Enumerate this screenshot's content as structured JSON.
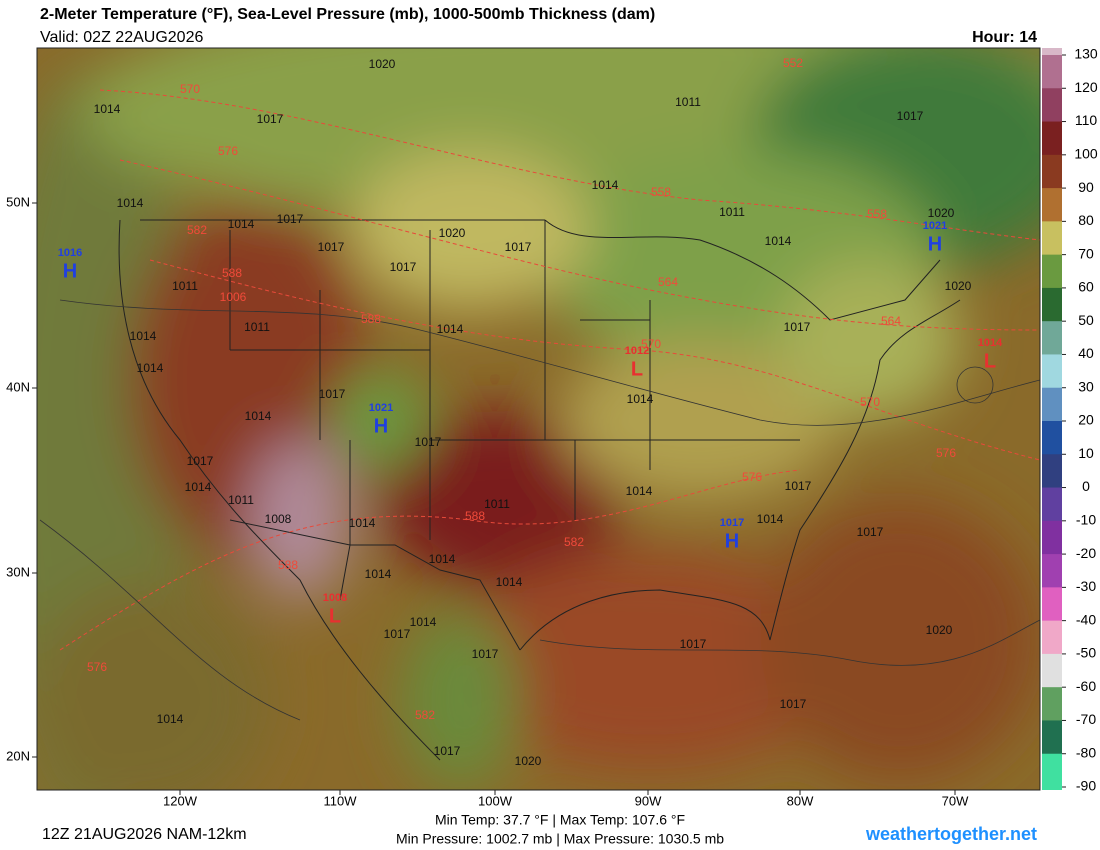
{
  "header": {
    "title": "2-Meter Temperature (°F), Sea-Level Pressure (mb), 1000-500mb Thickness (dam)",
    "valid": "Valid: 02Z 22AUG2026",
    "hour": "Hour: 14"
  },
  "colorbar": {
    "ticks": [
      130,
      120,
      110,
      100,
      90,
      80,
      70,
      60,
      50,
      40,
      30,
      20,
      10,
      0,
      -10,
      -20,
      -30,
      -40,
      -50,
      -60,
      -70,
      -80,
      -90
    ]
  },
  "axes": {
    "lat": [
      "50N",
      "40N",
      "30N",
      "20N"
    ],
    "lon": [
      "120W",
      "110W",
      "100W",
      "90W",
      "80W",
      "70W"
    ]
  },
  "centers": [
    {
      "type": "H",
      "value": 1016
    },
    {
      "type": "H",
      "value": 1021
    },
    {
      "type": "H",
      "value": 1021
    },
    {
      "type": "H",
      "value": 1017
    },
    {
      "type": "L",
      "value": 1012
    },
    {
      "type": "L",
      "value": 1014
    },
    {
      "type": "L",
      "value": 1008
    }
  ],
  "isobar_labels": [
    1014,
    1017,
    1014,
    1017,
    1014,
    1011,
    1011,
    1017,
    1017,
    1020,
    1017,
    1014,
    1014,
    1014,
    1014,
    1017,
    1017,
    1011,
    1014,
    1008,
    1014,
    1014,
    1014,
    1014,
    1017,
    1017,
    1017,
    1014,
    1014,
    1014,
    1017,
    1017,
    1020,
    1017,
    1014,
    1020,
    1011,
    1011,
    1014,
    1014,
    1017,
    1020,
    1020,
    1017,
    1020,
    1017,
    1017,
    1014,
    1011
  ],
  "thickness_labels": [
    570,
    576,
    582,
    588,
    1006,
    588,
    558,
    564,
    570,
    558,
    564,
    570,
    576,
    576,
    588,
    582,
    588,
    576,
    582,
    552
  ],
  "footer": {
    "run": "12Z 21AUG2026 NAM-12km",
    "stats_temp": "Min Temp:  37.7 °F | Max Temp: 107.6 °F",
    "stats_pressure": "Min Pressure: 1002.7 mb | Max Pressure: 1030.5 mb",
    "site": "weathertogether.net"
  }
}
